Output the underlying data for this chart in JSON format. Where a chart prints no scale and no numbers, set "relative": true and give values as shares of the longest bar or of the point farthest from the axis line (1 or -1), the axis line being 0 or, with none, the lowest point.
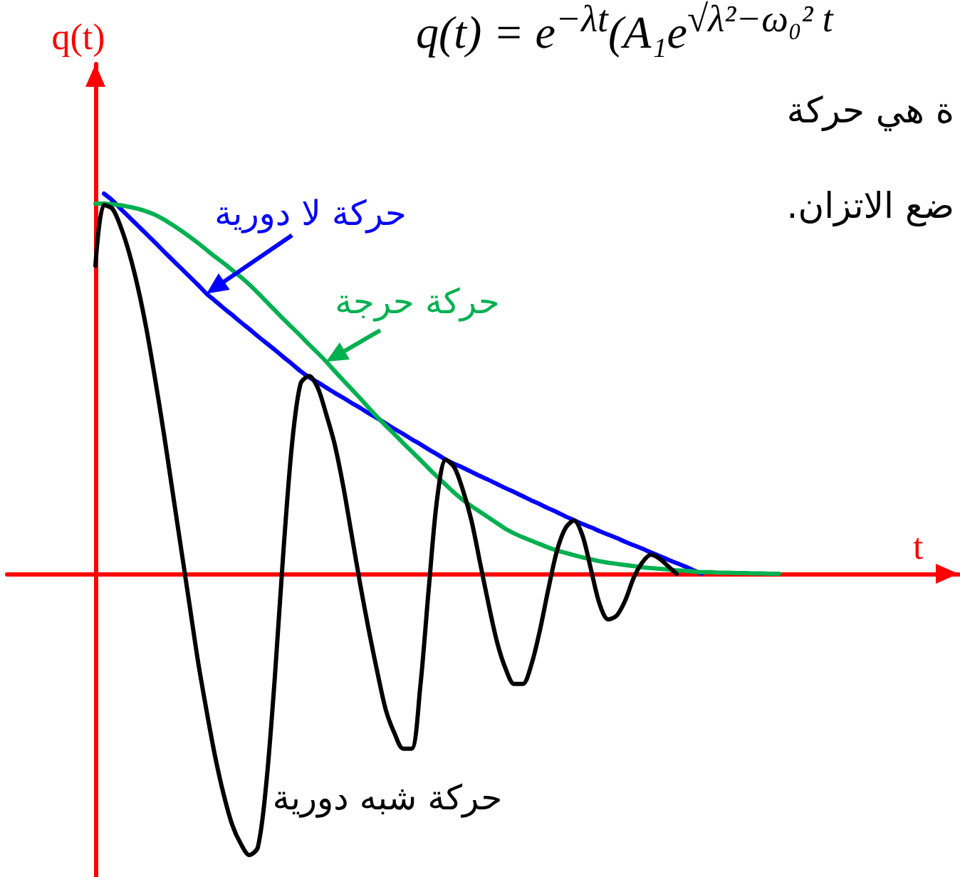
{
  "chart_data": {
    "type": "line",
    "relative": true,
    "xlabel": "t",
    "ylabel": "q(t)",
    "marker": "none",
    "line_style": "solid",
    "categories": [
      null,
      null,
      null,
      null,
      null,
      null,
      null,
      null,
      null,
      null,
      null,
      null,
      null,
      null,
      null,
      null,
      null,
      null,
      null,
      null,
      null,
      null,
      null,
      null,
      null,
      null,
      null,
      null,
      null,
      null,
      null,
      null,
      null,
      null,
      null,
      null,
      null,
      null,
      null,
      null,
      null,
      null,
      null,
      null,
      null,
      null,
      null,
      null,
      null,
      null,
      null,
      null,
      null,
      null,
      null,
      null,
      null,
      null,
      null,
      null,
      null,
      null,
      null,
      null,
      null,
      null,
      null,
      null,
      null,
      null,
      null,
      null,
      null,
      null,
      null,
      null,
      null,
      null,
      null,
      null,
      null
    ],
    "series": [
      {
        "name": "حركة لا دورية",
        "color": "#0000ff",
        "values": [
          null,
          1,
          0.982,
          0.959,
          0.937,
          0.915,
          0.893,
          0.871,
          0.848,
          0.826,
          0.804,
          0.782,
          0.76,
          0.737,
          0.718,
          0.699,
          0.681,
          0.662,
          0.644,
          0.625,
          0.607,
          0.589,
          0.57,
          0.552,
          0.533,
          0.517,
          0.504,
          0.49,
          0.476,
          0.463,
          0.449,
          0.436,
          0.422,
          0.409,
          0.395,
          0.381,
          0.368,
          0.354,
          0.341,
          0.327,
          0.314,
          0.3,
          0.289,
          0.279,
          0.268,
          0.257,
          0.247,
          0.236,
          0.225,
          0.215,
          0.204,
          0.193,
          0.183,
          0.172,
          0.162,
          0.151,
          0.141,
          0.131,
          0.122,
          0.112,
          0.103,
          0.094,
          0.084,
          0.075,
          0.066,
          0.056,
          0.047,
          0.037,
          0.028,
          0.019,
          0.009,
          0,
          null,
          null,
          null,
          null,
          null,
          null,
          null,
          null,
          null
        ]
      },
      {
        "name": "حركة حرجة",
        "color": "#00b050",
        "values": [
          0.974,
          0.974,
          0.972,
          0.969,
          0.965,
          0.96,
          0.953,
          0.944,
          0.932,
          0.918,
          0.903,
          0.887,
          0.87,
          0.852,
          0.834,
          0.817,
          0.799,
          0.781,
          0.761,
          0.739,
          0.716,
          0.693,
          0.67,
          0.648,
          0.626,
          0.603,
          0.581,
          0.558,
          0.533,
          0.509,
          0.485,
          0.461,
          0.436,
          0.412,
          0.389,
          0.367,
          0.344,
          0.322,
          0.3,
          0.277,
          0.255,
          0.234,
          0.213,
          0.194,
          0.178,
          0.163,
          0.148,
          0.133,
          0.118,
          0.106,
          0.096,
          0.087,
          0.078,
          0.069,
          0.061,
          0.055,
          0.049,
          0.043,
          0.038,
          0.033,
          0.029,
          0.026,
          0.023,
          0.02,
          0.017,
          0.015,
          0.013,
          0.011,
          0.009,
          0.008,
          0.006,
          0.004,
          0.004,
          0.003,
          0.003,
          0.002,
          0.002,
          0.001,
          0.001,
          0,
          0
        ]
      },
      {
        "name": "حركة شبه دورية",
        "color": "#000000",
        "values": [
          0.81,
          0.97,
          0.96,
          0.91,
          0.84,
          0.75,
          0.64,
          0.51,
          0.37,
          0.22,
          0.07,
          -0.08,
          -0.23,
          -0.36,
          -0.48,
          -0.58,
          -0.66,
          -0.71,
          -0.74,
          -0.72,
          -0.55,
          -0.27,
          0.06,
          0.34,
          0.5,
          0.52,
          0.49,
          0.42,
          0.34,
          0.23,
          0.1,
          -0.03,
          -0.15,
          -0.26,
          -0.36,
          -0.42,
          -0.46,
          -0.46,
          -0.3,
          -0.04,
          0.2,
          0.3,
          0.28,
          0.22,
          0.14,
          0.03,
          -0.08,
          -0.18,
          -0.25,
          -0.29,
          -0.29,
          -0.24,
          -0.15,
          -0.04,
          0.06,
          0.12,
          0.14,
          0.1,
          0.01,
          -0.08,
          -0.12,
          -0.11,
          -0.07,
          -0.01,
          0.03,
          0.05,
          0.04,
          0.02,
          0,
          null,
          null,
          null,
          null,
          null,
          null,
          null,
          null,
          null,
          null,
          null,
          null
        ]
      }
    ],
    "annotations": [
      "q(t) = e$^{−λt}$(A₁e$^{√λ²−ω₀² t}$",
      "ة هي حركة",
      "ضع الاتزان."
    ]
  }
}
